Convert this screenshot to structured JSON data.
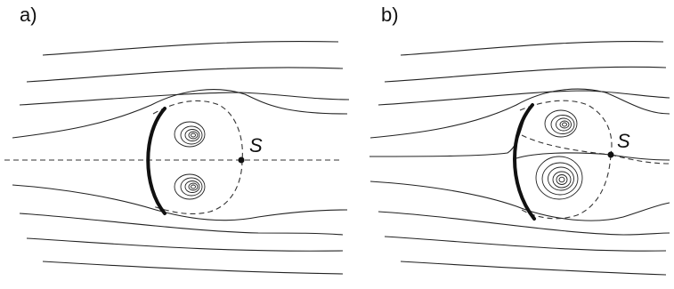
{
  "panels": [
    {
      "label": "a)",
      "point_label": "S"
    },
    {
      "label": "b)",
      "point_label": "S"
    }
  ],
  "colors": {
    "ink": "#222222",
    "background": "#ffffff"
  }
}
